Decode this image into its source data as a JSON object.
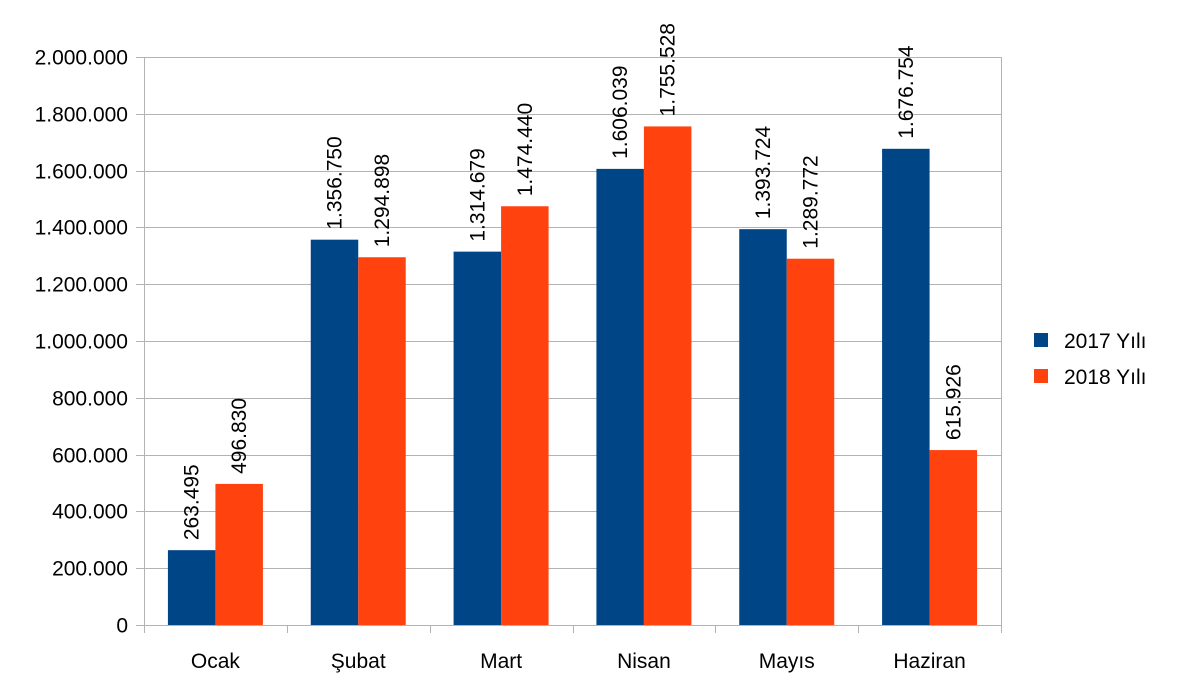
{
  "chart_data": {
    "type": "bar",
    "title": "",
    "xlabel": "",
    "ylabel": "",
    "categories": [
      "Ocak",
      "Şubat",
      "Mart",
      "Nisan",
      "Mayıs",
      "Haziran"
    ],
    "series": [
      {
        "name": "2017 Yılı",
        "color": "#004586",
        "values": [
          263495,
          1356750,
          1314679,
          1606039,
          1393724,
          1676754
        ],
        "labels": [
          "263.495",
          "1.356.750",
          "1.314.679",
          "1.606.039",
          "1.393.724",
          "1.676.754"
        ]
      },
      {
        "name": "2018 Yılı",
        "color": "#ff420e",
        "values": [
          496830,
          1294898,
          1474440,
          1755528,
          1289772,
          615926
        ],
        "labels": [
          "496.830",
          "1.294.898",
          "1.474.440",
          "1.755.528",
          "1.289.772",
          "615.926"
        ]
      }
    ],
    "ylim": [
      0,
      2000000
    ],
    "yticks": [
      0,
      200000,
      400000,
      600000,
      800000,
      1000000,
      1200000,
      1400000,
      1600000,
      1800000,
      2000000
    ],
    "ytick_labels": [
      "0",
      "200.000",
      "400.000",
      "600.000",
      "800.000",
      "1.000.000",
      "1.200.000",
      "1.400.000",
      "1.600.000",
      "1.800.000",
      "2.000.000"
    ],
    "grid": true,
    "grid_color": "#b3b3b3",
    "legend_position": "right"
  }
}
